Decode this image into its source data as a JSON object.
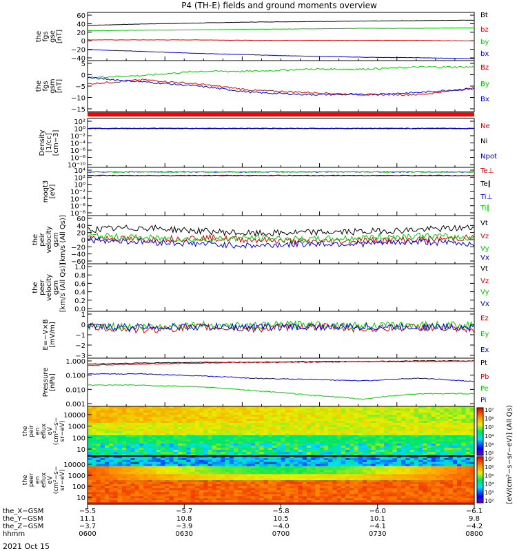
{
  "title": "P4 (TH-E) fields and ground moments overview",
  "date_label": "2021 Oct 15",
  "colors": {
    "black": "#000000",
    "red": "#e00000",
    "green": "#00cc00",
    "blue": "#0000dd",
    "bar": "#ff0000"
  },
  "chart_data": [
    {
      "type": "line",
      "panel": "fgs_gse",
      "ylabel": [
        "the",
        "fgs",
        "gse",
        "[nT]"
      ],
      "yticks": [
        "60",
        "40",
        "20",
        "0",
        "−20",
        "−40"
      ],
      "ylim": [
        -40,
        60
      ],
      "series": [
        {
          "name": "Bt",
          "color": "#000000",
          "values": [
            33,
            36,
            38,
            40,
            41,
            42,
            43,
            44
          ]
        },
        {
          "name": "bz",
          "color": "#e00000",
          "values": [
            3,
            3,
            3,
            2,
            2,
            2,
            2,
            1
          ]
        },
        {
          "name": "by",
          "color": "#00cc00",
          "values": [
            22,
            23,
            24,
            25,
            26,
            27,
            27,
            28
          ]
        },
        {
          "name": "bx",
          "color": "#0000dd",
          "values": [
            -17,
            -21,
            -25,
            -28,
            -31,
            -33,
            -34,
            -36
          ]
        }
      ]
    },
    {
      "type": "line",
      "panel": "fgs_gsm",
      "ylabel": [
        "the",
        "fgs",
        "gsm",
        "[nT]"
      ],
      "yticks": [
        "5",
        "0",
        "−5",
        "−10",
        "−15"
      ],
      "ylim": [
        -17,
        7
      ],
      "series": [
        {
          "name": "Bz",
          "color": "#e00000",
          "values": [
            -4,
            -2,
            -4,
            -7,
            -8,
            -9,
            -9,
            -6
          ]
        },
        {
          "name": "By",
          "color": "#00cc00",
          "values": [
            -1,
            0,
            2,
            2,
            3,
            3,
            4,
            4
          ]
        },
        {
          "name": "Bx",
          "color": "#0000dd",
          "values": [
            -1,
            -3,
            -5,
            -8,
            -9,
            -9,
            -8,
            -6
          ]
        }
      ]
    },
    {
      "type": "line",
      "panel": "density",
      "ylabel": [
        "Density",
        "[1/cc]",
        "[cm−3]"
      ],
      "yticks": [
        "10²",
        "10⁰",
        "10⁻²",
        "10⁻⁴",
        "10⁻⁶",
        "10⁻⁸",
        "10⁻¹⁰"
      ],
      "series": [
        {
          "name": "Ne",
          "color": "#e00000",
          "values": [
            1
          ]
        },
        {
          "name": "Ni",
          "color": "#000000",
          "values": [
            1
          ]
        },
        {
          "name": "Npot",
          "color": "#0000dd",
          "values": [
            1
          ]
        }
      ]
    },
    {
      "type": "line",
      "panel": "temperature",
      "ylabel": [
        "moqt3",
        "[eV]"
      ],
      "yticks": [
        "10⁴",
        "10²",
        "10⁰",
        "10⁻²",
        "10⁻⁴",
        "10⁻⁶",
        "10⁻⁸"
      ],
      "series": [
        {
          "name": "Te⊥",
          "color": "#e00000",
          "values": [
            300
          ]
        },
        {
          "name": "Te∥",
          "color": "#000000",
          "values": [
            300
          ]
        },
        {
          "name": "Ti⊥",
          "color": "#0000dd",
          "values": [
            3000
          ]
        },
        {
          "name": "Ti∥",
          "color": "#00cc00",
          "values": [
            3000
          ]
        }
      ]
    },
    {
      "type": "line",
      "panel": "peir_velocity",
      "ylabel": [
        "the",
        "peir",
        "velocity",
        "gsm",
        "[km/s (All Qs)]"
      ],
      "yticks": [
        "60",
        "40",
        "20",
        "0",
        "−20",
        "−40",
        "−60"
      ],
      "ylim": [
        -60,
        60
      ],
      "series": [
        {
          "name": "Vt",
          "color": "#000000",
          "values": [
            25,
            30,
            22,
            15,
            18,
            20,
            25,
            30
          ]
        },
        {
          "name": "Vz",
          "color": "#e00000",
          "values": [
            5,
            0,
            5,
            0,
            -5,
            -2,
            0,
            5
          ]
        },
        {
          "name": "Vy",
          "color": "#00cc00",
          "values": [
            10,
            5,
            0,
            5,
            0,
            5,
            10,
            5
          ]
        },
        {
          "name": "Vx",
          "color": "#0000dd",
          "values": [
            0,
            -5,
            -10,
            -15,
            -10,
            -10,
            -5,
            -10
          ]
        }
      ]
    },
    {
      "type": "line",
      "panel": "peer_velocity",
      "ylabel": [
        "the",
        "peer",
        "velocity",
        "gsm",
        "[km/s (All Qs)]"
      ],
      "yticks": [
        "1.0",
        "0.8",
        "0.6",
        "0.4",
        "0.2",
        "0.0"
      ],
      "ylim": [
        0,
        1
      ],
      "series": [
        {
          "name": "Vt",
          "color": "#000000",
          "values": []
        },
        {
          "name": "Vz",
          "color": "#e00000",
          "values": []
        },
        {
          "name": "Vy",
          "color": "#00cc00",
          "values": []
        },
        {
          "name": "Vx",
          "color": "#0000dd",
          "values": []
        }
      ]
    },
    {
      "type": "line",
      "panel": "e_field",
      "ylabel": [
        "E=−V×B",
        "[mV/m]"
      ],
      "yticks": [
        "1",
        "0",
        "−1",
        "−2",
        "−3"
      ],
      "ylim": [
        -3,
        1.5
      ],
      "series": [
        {
          "name": "Ez",
          "color": "#e00000",
          "values": [
            0,
            -0.3,
            0,
            -0.2,
            0.1,
            -0.2,
            0,
            -0.4
          ]
        },
        {
          "name": "Ey",
          "color": "#00cc00",
          "values": [
            0.1,
            0,
            0.2,
            0.1,
            0.3,
            0.1,
            0.2,
            0.2
          ]
        },
        {
          "name": "Ex",
          "color": "#0000dd",
          "values": [
            0,
            0,
            0,
            0,
            0,
            0,
            0,
            0
          ]
        }
      ]
    },
    {
      "type": "line",
      "panel": "pressure",
      "ylabel": [
        "Pressure",
        "[nPa]"
      ],
      "yticks": [
        "1.000",
        "0.100",
        "0.010",
        "0.001"
      ],
      "series": [
        {
          "name": "Pt",
          "color": "#000000",
          "values": [
            0.6,
            0.7,
            0.8,
            0.8,
            0.9,
            0.9,
            1.0,
            1.0
          ]
        },
        {
          "name": "Pb",
          "color": "#e00000",
          "values": [
            0.5,
            0.6,
            0.7,
            0.8,
            0.8,
            0.9,
            0.9,
            1.0
          ]
        },
        {
          "name": "Pe",
          "color": "#00cc00",
          "values": [
            0.02,
            0.02,
            0.015,
            0.008,
            0.004,
            0.002,
            0.005,
            0.005
          ]
        },
        {
          "name": "Pi",
          "color": "#0000dd",
          "values": [
            0.12,
            0.12,
            0.09,
            0.06,
            0.05,
            0.04,
            0.06,
            0.035
          ]
        }
      ]
    },
    {
      "type": "heatmap",
      "panel": "peir_eflux",
      "ylabel": [
        "the",
        "peir",
        "en",
        "eflux",
        "eV",
        "(cm²−s−",
        "sr−eV)"
      ],
      "yticks": [
        "10000",
        "1000",
        "100",
        "10"
      ]
    },
    {
      "type": "heatmap",
      "panel": "peer_eflux",
      "ylabel": [
        "the",
        "peer",
        "en",
        "eflux",
        "eV",
        "(cm²−s−",
        "sr−eV)"
      ],
      "yticks": [
        "10000",
        "1000",
        "100",
        "10"
      ]
    },
    {
      "type": "colorbar",
      "label": "[eV/(cm²−s−sr−eV)] (All Qs)",
      "ticks": [
        "10⁷",
        "10⁶",
        "10⁵",
        "10⁴",
        "10³",
        "10²",
        "10⁷",
        "10⁶",
        "10⁵",
        "10⁴",
        "10³",
        "10²"
      ]
    }
  ],
  "x_axis": {
    "row_labels": [
      "the_X−GSM",
      "the_Y−GSM",
      "the_Z−GSM",
      "hhmm"
    ],
    "ticks": [
      {
        "x": "−5.5",
        "y": "11.1",
        "z": "−3.7",
        "t": "0600"
      },
      {
        "x": "−5.7",
        "y": "10.8",
        "z": "−3.9",
        "t": "0630"
      },
      {
        "x": "−5.8",
        "y": "10.5",
        "z": "−4.0",
        "t": "0700"
      },
      {
        "x": "−6.0",
        "y": "10.1",
        "z": "−4.1",
        "t": "0730"
      },
      {
        "x": "−6.1",
        "y": "9.8",
        "z": "−4.2",
        "t": "0800"
      }
    ]
  }
}
